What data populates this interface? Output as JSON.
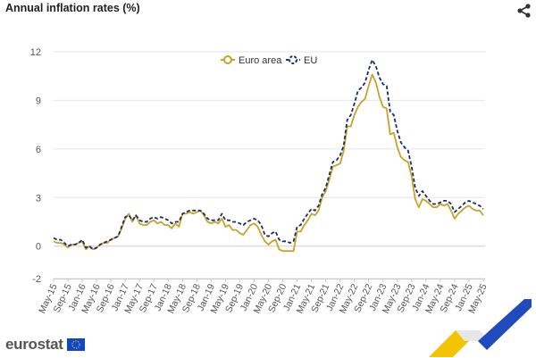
{
  "header": {
    "title": "Annual inflation rates (%)",
    "share_icon": "share-icon"
  },
  "footer": {
    "logo_text": "eurostat",
    "flag_icon": "eu-flag-icon"
  },
  "colors": {
    "euro_area": "#c9a227",
    "eu": "#1a2e6e",
    "grid": "#e6e6e6",
    "axis_text": "#555555"
  },
  "chart_data": {
    "type": "line",
    "title": "Annual inflation rates (%)",
    "xlabel": "",
    "ylabel": "",
    "ylim": [
      -2,
      12
    ],
    "yticks": [
      -2,
      0,
      3,
      6,
      9,
      12
    ],
    "grid": true,
    "legend": "top-center",
    "x": [
      "May-15",
      "Jun-15",
      "Jul-15",
      "Aug-15",
      "Sep-15",
      "Oct-15",
      "Nov-15",
      "Dec-15",
      "Jan-16",
      "Feb-16",
      "Mar-16",
      "Apr-16",
      "May-16",
      "Jun-16",
      "Jul-16",
      "Aug-16",
      "Sep-16",
      "Oct-16",
      "Nov-16",
      "Dec-16",
      "Jan-17",
      "Feb-17",
      "Mar-17",
      "Apr-17",
      "May-17",
      "Jun-17",
      "Jul-17",
      "Aug-17",
      "Sep-17",
      "Oct-17",
      "Nov-17",
      "Dec-17",
      "Jan-18",
      "Feb-18",
      "Mar-18",
      "Apr-18",
      "May-18",
      "Jun-18",
      "Jul-18",
      "Aug-18",
      "Sep-18",
      "Oct-18",
      "Nov-18",
      "Dec-18",
      "Jan-19",
      "Feb-19",
      "Mar-19",
      "Apr-19",
      "May-19",
      "Jun-19",
      "Jul-19",
      "Aug-19",
      "Sep-19",
      "Oct-19",
      "Nov-19",
      "Dec-19",
      "Jan-20",
      "Feb-20",
      "Mar-20",
      "Apr-20",
      "May-20",
      "Jun-20",
      "Jul-20",
      "Aug-20",
      "Sep-20",
      "Oct-20",
      "Nov-20",
      "Dec-20",
      "Jan-21",
      "Feb-21",
      "Mar-21",
      "Apr-21",
      "May-21",
      "Jun-21",
      "Jul-21",
      "Aug-21",
      "Sep-21",
      "Oct-21",
      "Nov-21",
      "Dec-21",
      "Jan-22",
      "Feb-22",
      "Mar-22",
      "Apr-22",
      "May-22",
      "Jun-22",
      "Jul-22",
      "Aug-22",
      "Sep-22",
      "Oct-22",
      "Nov-22",
      "Dec-22",
      "Jan-23",
      "Feb-23",
      "Mar-23",
      "Apr-23",
      "May-23",
      "Jun-23",
      "Jul-23",
      "Aug-23",
      "Sep-23",
      "Oct-23",
      "Nov-23",
      "Dec-23",
      "Jan-24",
      "Feb-24",
      "Mar-24",
      "Apr-24",
      "May-24",
      "Jun-24",
      "Jul-24",
      "Aug-24",
      "Sep-24",
      "Oct-24",
      "Nov-24",
      "Dec-24",
      "Jan-25",
      "Feb-25",
      "Mar-25",
      "Apr-25",
      "May-25"
    ],
    "xtick_labels": [
      "May-15",
      "Sep-15",
      "Jan-16",
      "May-16",
      "Sep-16",
      "Jan-17",
      "May-17",
      "Sep-17",
      "Jan-18",
      "May-18",
      "Sep-18",
      "Jan-19",
      "May-19",
      "Sep-19",
      "Jan-20",
      "May-20",
      "Sep-20",
      "Jan-21",
      "May-21",
      "Sep-21",
      "Jan-22",
      "May-22",
      "Sep-22",
      "Jan-23",
      "May-23",
      "Sep-23",
      "Jan-24",
      "May-24",
      "Sep-24",
      "Jan-25",
      "May-25"
    ],
    "series": [
      {
        "name": "Euro area",
        "style": "solid",
        "values": [
          0.3,
          0.2,
          0.2,
          0.1,
          -0.1,
          0.1,
          0.1,
          0.2,
          0.3,
          -0.2,
          0.0,
          -0.2,
          -0.1,
          0.1,
          0.2,
          0.2,
          0.4,
          0.5,
          0.6,
          1.1,
          1.7,
          2.0,
          1.5,
          1.9,
          1.4,
          1.3,
          1.3,
          1.5,
          1.6,
          1.4,
          1.5,
          1.3,
          1.3,
          1.1,
          1.4,
          1.2,
          2.0,
          2.0,
          2.1,
          2.0,
          2.1,
          2.2,
          1.9,
          1.5,
          1.4,
          1.5,
          1.4,
          1.7,
          1.2,
          1.3,
          1.0,
          1.0,
          0.8,
          0.7,
          1.0,
          1.3,
          1.4,
          1.2,
          0.7,
          0.3,
          0.1,
          0.3,
          0.4,
          -0.2,
          -0.3,
          -0.3,
          -0.3,
          -0.3,
          0.9,
          0.9,
          1.3,
          1.6,
          2.0,
          1.9,
          2.2,
          3.0,
          3.4,
          4.1,
          4.9,
          5.0,
          5.1,
          5.9,
          7.4,
          7.4,
          8.1,
          8.6,
          8.9,
          9.1,
          9.9,
          10.6,
          10.1,
          9.2,
          8.6,
          8.5,
          6.9,
          7.0,
          6.1,
          5.5,
          5.3,
          5.2,
          4.3,
          2.9,
          2.4,
          2.9,
          2.8,
          2.6,
          2.4,
          2.4,
          2.6,
          2.5,
          2.6,
          2.2,
          1.7,
          2.0,
          2.2,
          2.4,
          2.5,
          2.3,
          2.2,
          2.2,
          1.9
        ]
      },
      {
        "name": "EU",
        "style": "dashed",
        "values": [
          0.5,
          0.4,
          0.4,
          0.2,
          0.0,
          0.1,
          0.1,
          0.2,
          0.4,
          -0.1,
          0.0,
          -0.2,
          -0.1,
          0.1,
          0.2,
          0.3,
          0.4,
          0.5,
          0.6,
          1.2,
          1.8,
          1.9,
          1.6,
          1.9,
          1.6,
          1.5,
          1.5,
          1.7,
          1.8,
          1.7,
          1.8,
          1.7,
          1.6,
          1.4,
          1.5,
          1.5,
          2.0,
          2.1,
          2.2,
          2.2,
          2.2,
          2.2,
          2.0,
          1.7,
          1.6,
          1.6,
          1.6,
          2.0,
          1.6,
          1.6,
          1.5,
          1.5,
          1.4,
          1.3,
          1.5,
          1.6,
          1.7,
          1.6,
          1.3,
          0.7,
          0.6,
          0.8,
          0.9,
          0.4,
          0.3,
          0.3,
          0.2,
          0.3,
          1.2,
          1.3,
          1.7,
          2.0,
          2.3,
          2.2,
          2.5,
          3.2,
          3.6,
          4.4,
          5.2,
          5.3,
          5.6,
          6.2,
          7.8,
          8.1,
          8.8,
          9.6,
          9.8,
          10.1,
          10.9,
          11.5,
          11.1,
          10.4,
          10.0,
          9.9,
          8.3,
          8.1,
          7.1,
          6.4,
          6.1,
          5.9,
          4.9,
          3.6,
          3.1,
          3.4,
          3.1,
          2.8,
          2.6,
          2.6,
          2.7,
          2.8,
          2.8,
          2.6,
          2.1,
          2.3,
          2.5,
          2.7,
          2.8,
          2.7,
          2.6,
          2.5,
          2.3
        ]
      }
    ]
  }
}
